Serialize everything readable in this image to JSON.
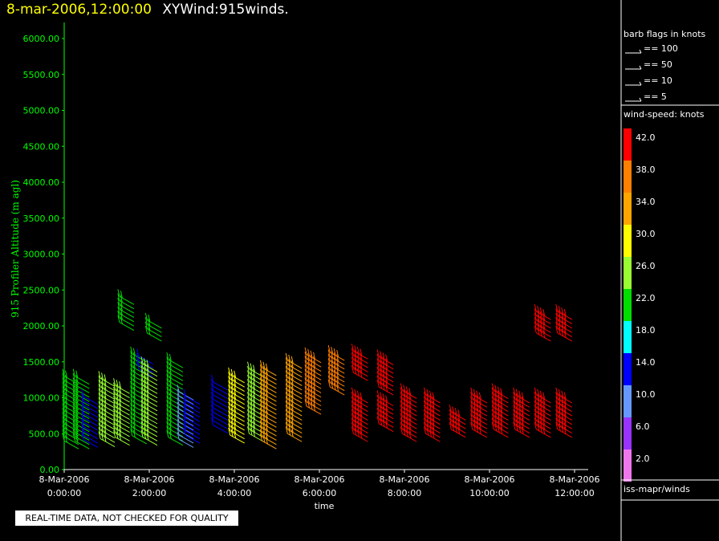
{
  "title": {
    "datetime": "8-mar-2006,12:00:00",
    "product": "XYWind:915winds."
  },
  "quality_note": "REAL-TIME DATA, NOT CHECKED FOR QUALITY",
  "legend": {
    "barb_title": "barb flags in knots",
    "barb_items": [
      "== 100",
      "== 50",
      "== 10",
      "== 5"
    ],
    "speed_title": "wind-speed: knots",
    "speed_bins": [
      {
        "label": "42.0",
        "color": "#ff0000"
      },
      {
        "label": "38.0",
        "color": "#ff7f00"
      },
      {
        "label": "34.0",
        "color": "#ffa500"
      },
      {
        "label": "30.0",
        "color": "#ffff00"
      },
      {
        "label": "26.0",
        "color": "#99ff33"
      },
      {
        "label": "22.0",
        "color": "#00dd00"
      },
      {
        "label": "18.0",
        "color": "#00ffff"
      },
      {
        "label": "14.0",
        "color": "#0000ff"
      },
      {
        "label": "10.0",
        "color": "#6699ff"
      },
      {
        "label": "6.0",
        "color": "#9933ff"
      },
      {
        "label": "2.0",
        "color": "#ee77ee"
      }
    ],
    "source": "iss-mapr/winds"
  },
  "chart_data": {
    "type": "scatter",
    "ylabel": "915 Profiler Altitude (m agl)",
    "xlabel": "time",
    "ylim": [
      0,
      6250
    ],
    "xlim": [
      0,
      11.75
    ],
    "yticks": [
      "6000.00",
      "5500.00",
      "5000.00",
      "4500.00",
      "4000.00",
      "3500.00",
      "3000.00",
      "2500.00",
      "2000.00",
      "1500.00",
      "1000.00",
      "500.00",
      "0.00"
    ],
    "xticks": [
      {
        "date": "8-Mar-2006",
        "time": "0:00:00"
      },
      {
        "date": "8-Mar-2006",
        "time": "2:00:00"
      },
      {
        "date": "8-Mar-2006",
        "time": "4:00:00"
      },
      {
        "date": "8-Mar-2006",
        "time": "6:00:00"
      },
      {
        "date": "8-Mar-2006",
        "time": "8:00:00"
      },
      {
        "date": "8-Mar-2006",
        "time": "10:00:00"
      },
      {
        "date": "8-Mar-2006",
        "time": "12:00:00"
      }
    ],
    "series": [
      {
        "t": 0.0,
        "alt": [
          400,
          1350
        ],
        "speed": 22
      },
      {
        "t": 0.25,
        "alt": [
          400,
          1300
        ],
        "speed": 22
      },
      {
        "t": 0.45,
        "alt": [
          420,
          1050
        ],
        "speed": 14
      },
      {
        "t": 0.85,
        "alt": [
          430,
          1270
        ],
        "speed": 26
      },
      {
        "t": 1.2,
        "alt": [
          450,
          1200
        ],
        "speed": 26
      },
      {
        "t": 1.3,
        "alt": [
          2050,
          2450
        ],
        "speed": 22
      },
      {
        "t": 1.6,
        "alt": [
          470,
          1650
        ],
        "speed": 22
      },
      {
        "t": 1.75,
        "alt": [
          1400,
          1600
        ],
        "speed": 14
      },
      {
        "t": 1.85,
        "alt": [
          450,
          1500
        ],
        "speed": 26
      },
      {
        "t": 1.95,
        "alt": [
          1900,
          2100
        ],
        "speed": 22
      },
      {
        "t": 2.45,
        "alt": [
          450,
          1530
        ],
        "speed": 22
      },
      {
        "t": 2.7,
        "alt": [
          420,
          1120
        ],
        "speed": 10
      },
      {
        "t": 2.85,
        "alt": [
          480,
          1070
        ],
        "speed": 14
      },
      {
        "t": 3.5,
        "alt": [
          620,
          1240
        ],
        "speed": 14
      },
      {
        "t": 3.9,
        "alt": [
          480,
          1350
        ],
        "speed": 30
      },
      {
        "t": 4.35,
        "alt": [
          500,
          1450
        ],
        "speed": 26
      },
      {
        "t": 4.65,
        "alt": [
          400,
          1450
        ],
        "speed": 34
      },
      {
        "t": 5.25,
        "alt": [
          500,
          1550
        ],
        "speed": 34
      },
      {
        "t": 5.7,
        "alt": [
          880,
          1650
        ],
        "speed": 36
      },
      {
        "t": 6.25,
        "alt": [
          1150,
          1650
        ],
        "speed": 36
      },
      {
        "t": 6.8,
        "alt": [
          1350,
          1650
        ],
        "speed": 42
      },
      {
        "t": 6.8,
        "alt": [
          500,
          1050
        ],
        "speed": 42
      },
      {
        "t": 7.4,
        "alt": [
          1150,
          1600
        ],
        "speed": 42
      },
      {
        "t": 7.4,
        "alt": [
          640,
          1050
        ],
        "speed": 42
      },
      {
        "t": 7.95,
        "alt": [
          500,
          1130
        ],
        "speed": 42
      },
      {
        "t": 8.5,
        "alt": [
          500,
          1070
        ],
        "speed": 42
      },
      {
        "t": 9.1,
        "alt": [
          560,
          840
        ],
        "speed": 42
      },
      {
        "t": 9.6,
        "alt": [
          560,
          1050
        ],
        "speed": 42
      },
      {
        "t": 10.1,
        "alt": [
          560,
          1150
        ],
        "speed": 42
      },
      {
        "t": 10.6,
        "alt": [
          560,
          1050
        ],
        "speed": 42
      },
      {
        "t": 11.1,
        "alt": [
          560,
          1050
        ],
        "speed": 42
      },
      {
        "t": 11.1,
        "alt": [
          1900,
          2250
        ],
        "speed": 40
      },
      {
        "t": 11.6,
        "alt": [
          560,
          1070
        ],
        "speed": 42
      },
      {
        "t": 11.6,
        "alt": [
          1900,
          2250
        ],
        "speed": 40
      }
    ]
  }
}
